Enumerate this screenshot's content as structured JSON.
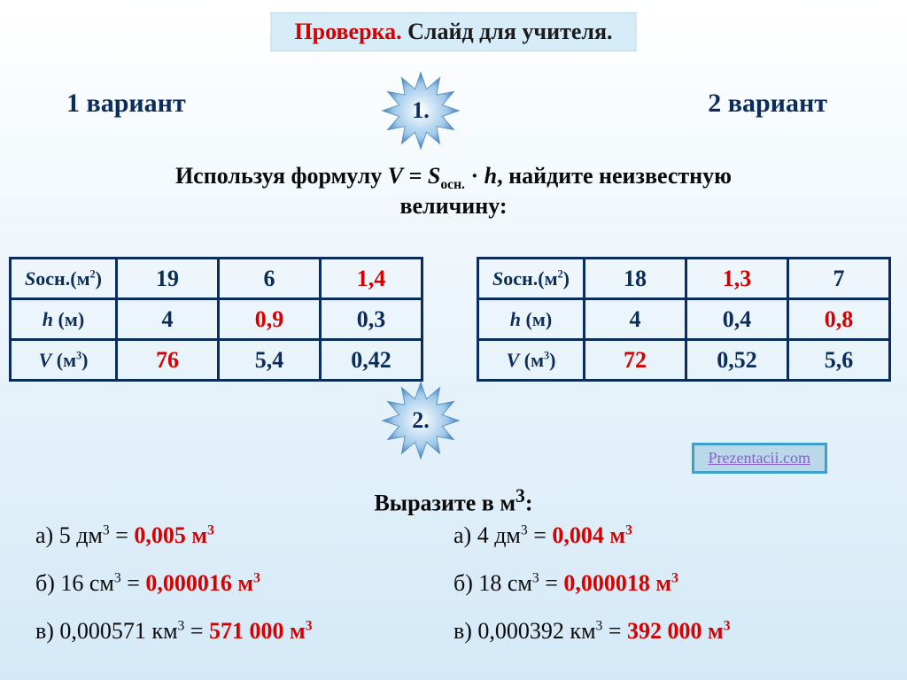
{
  "title": {
    "highlight": "Проверка.",
    "rest": " Слайд для учителя."
  },
  "variants": {
    "left": "1 вариант",
    "right": "2 вариант"
  },
  "stars": {
    "s1": "1.",
    "s2": "2."
  },
  "instruction": {
    "pre": "Используя формулу ",
    "formula_v": "V",
    "formula_eq": " = ",
    "formula_s": "S",
    "formula_sub": "осн.",
    "formula_dot": " · ",
    "formula_h": "h",
    "post": ", найдите неизвестную",
    "line2": "величину:"
  },
  "table1": {
    "rows": [
      {
        "label_html": "<i>S</i>осн.(м<sup>2</sup>)",
        "cells": [
          {
            "v": "19",
            "red": false
          },
          {
            "v": "6",
            "red": false
          },
          {
            "v": "1,4",
            "red": true
          }
        ]
      },
      {
        "label_html": "<i>h</i> (м)",
        "cells": [
          {
            "v": "4",
            "red": false
          },
          {
            "v": "0,9",
            "red": true
          },
          {
            "v": "0,3",
            "red": false
          }
        ]
      },
      {
        "label_html": "<i>V</i> (м<sup>3</sup>)",
        "cells": [
          {
            "v": "76",
            "red": true
          },
          {
            "v": "5,4",
            "red": false
          },
          {
            "v": "0,42",
            "red": false
          }
        ]
      }
    ]
  },
  "table2": {
    "rows": [
      {
        "label_html": "<i>S</i>осн.(м<sup>2</sup>)",
        "cells": [
          {
            "v": "18",
            "red": false
          },
          {
            "v": "1,3",
            "red": true
          },
          {
            "v": "7",
            "red": false
          }
        ]
      },
      {
        "label_html": "<i>h</i> (м)",
        "cells": [
          {
            "v": "4",
            "red": false
          },
          {
            "v": "0,4",
            "red": false
          },
          {
            "v": "0,8",
            "red": true
          }
        ]
      },
      {
        "label_html": "<i>V</i> (м<sup>3</sup>)",
        "cells": [
          {
            "v": "72",
            "red": true
          },
          {
            "v": "0,52",
            "red": false
          },
          {
            "v": "5,6",
            "red": false
          }
        ]
      }
    ]
  },
  "link": "Prezentacii.com",
  "subtitle2_pre": "Выразите в м",
  "subtitle2_sup": "3",
  "subtitle2_post": ":",
  "conversions": {
    "left": [
      {
        "q_pre": "а) 5 дм",
        "q_sup": "3",
        "q_post": " = ",
        "a_pre": "0,005 м",
        "a_sup": "3"
      },
      {
        "q_pre": "б) 16 см",
        "q_sup": "3",
        "q_post": " = ",
        "a_pre": "0,000016 м",
        "a_sup": "3"
      },
      {
        "q_pre": "в) 0,000571 км",
        "q_sup": "3",
        "q_post": " = ",
        "a_pre": "571 000 м",
        "a_sup": "3"
      }
    ],
    "right": [
      {
        "q_pre": "а) 4 дм",
        "q_sup": "3",
        "q_post": " = ",
        "a_pre": "0,004 м",
        "a_sup": "3"
      },
      {
        "q_pre": "б) 18 см",
        "q_sup": "3",
        "q_post": " = ",
        "a_pre": "0,000018 м",
        "a_sup": "3"
      },
      {
        "q_pre": "в) 0,000392 км",
        "q_sup": "3",
        "q_post": " = ",
        "a_pre": "392 000 м",
        "a_sup": "3"
      }
    ]
  },
  "colors": {
    "accent_navy": "#0b2d5c",
    "answer_red": "#d60000",
    "bg_top": "#ffffff",
    "bg_bottom": "#d4e9f7",
    "title_bg": "#d6ecf9",
    "btn_bg": "#b9d9e8",
    "btn_border": "#3da1cc"
  }
}
